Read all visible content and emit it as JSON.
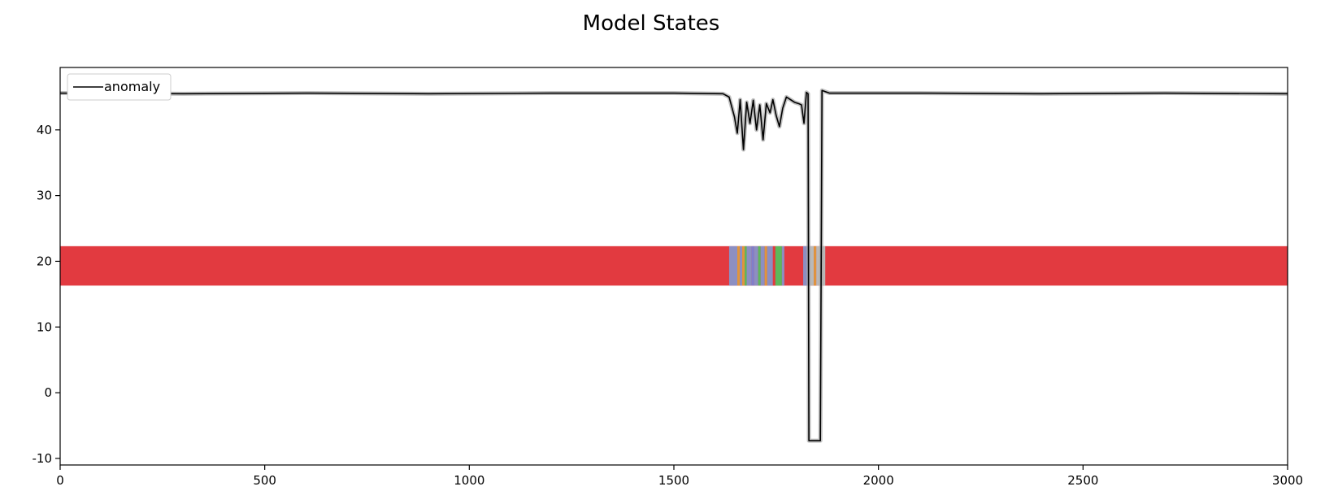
{
  "chart_data": {
    "type": "line",
    "title": "Model States",
    "xlabel": "",
    "ylabel": "",
    "xlim": [
      0,
      3000
    ],
    "ylim": [
      -11,
      49.5
    ],
    "x_ticks": [
      0,
      500,
      1000,
      1500,
      2000,
      2500,
      3000
    ],
    "y_ticks": [
      -10,
      0,
      10,
      20,
      30,
      40
    ],
    "grid": false,
    "legend": {
      "position": "top-left",
      "entries": [
        {
          "label": "anomaly",
          "color": "#000000"
        }
      ]
    },
    "series": [
      {
        "name": "anomaly",
        "color": "#000000",
        "shadow_color": "#a6a6a6",
        "points": [
          [
            0,
            45.6
          ],
          [
            300,
            45.5
          ],
          [
            600,
            45.6
          ],
          [
            900,
            45.5
          ],
          [
            1200,
            45.6
          ],
          [
            1500,
            45.6
          ],
          [
            1620,
            45.5
          ],
          [
            1635,
            45.0
          ],
          [
            1648,
            42.0
          ],
          [
            1655,
            39.5
          ],
          [
            1662,
            44.6
          ],
          [
            1670,
            37.0
          ],
          [
            1678,
            44.2
          ],
          [
            1686,
            41.0
          ],
          [
            1694,
            44.5
          ],
          [
            1702,
            40.0
          ],
          [
            1710,
            43.8
          ],
          [
            1718,
            38.5
          ],
          [
            1726,
            44.0
          ],
          [
            1735,
            42.6
          ],
          [
            1742,
            44.6
          ],
          [
            1750,
            42.2
          ],
          [
            1758,
            40.5
          ],
          [
            1766,
            43.3
          ],
          [
            1775,
            45.0
          ],
          [
            1785,
            44.6
          ],
          [
            1795,
            44.2
          ],
          [
            1805,
            44.0
          ],
          [
            1812,
            43.8
          ],
          [
            1818,
            41.0
          ],
          [
            1824,
            45.7
          ],
          [
            1828,
            45.5
          ],
          [
            1830,
            -7.3
          ],
          [
            1858,
            -7.3
          ],
          [
            1862,
            46.0
          ],
          [
            1880,
            45.6
          ],
          [
            2100,
            45.6
          ],
          [
            2400,
            45.5
          ],
          [
            2700,
            45.6
          ],
          [
            3000,
            45.5
          ]
        ]
      }
    ],
    "state_band": {
      "y_range": [
        16.3,
        22.3
      ],
      "x_range": [
        0,
        3000
      ],
      "default_color": "#e23a40",
      "segments": [
        {
          "x0": 1635,
          "x1": 1655,
          "color": "#8c8fc2"
        },
        {
          "x0": 1655,
          "x1": 1661,
          "color": "#e0953d"
        },
        {
          "x0": 1661,
          "x1": 1667,
          "color": "#8c8fc2"
        },
        {
          "x0": 1667,
          "x1": 1673,
          "color": "#e0953d"
        },
        {
          "x0": 1673,
          "x1": 1678,
          "color": "#5cb85c"
        },
        {
          "x0": 1678,
          "x1": 1690,
          "color": "#8c8fc2"
        },
        {
          "x0": 1690,
          "x1": 1696,
          "color": "#7f7fcc"
        },
        {
          "x0": 1696,
          "x1": 1706,
          "color": "#8c8fc2"
        },
        {
          "x0": 1706,
          "x1": 1712,
          "color": "#5cb85c"
        },
        {
          "x0": 1712,
          "x1": 1722,
          "color": "#8c8fc2"
        },
        {
          "x0": 1722,
          "x1": 1728,
          "color": "#e0953d"
        },
        {
          "x0": 1728,
          "x1": 1742,
          "color": "#8c8fc2"
        },
        {
          "x0": 1742,
          "x1": 1748,
          "color": "#e23a40"
        },
        {
          "x0": 1748,
          "x1": 1764,
          "color": "#5cb85c"
        },
        {
          "x0": 1764,
          "x1": 1770,
          "color": "#8c8fc2"
        },
        {
          "x0": 1816,
          "x1": 1828,
          "color": "#8c8fc2"
        },
        {
          "x0": 1828,
          "x1": 1842,
          "color": "#b9b9b9"
        },
        {
          "x0": 1842,
          "x1": 1848,
          "color": "#e0953d"
        },
        {
          "x0": 1848,
          "x1": 1870,
          "color": "#b9b9b9"
        }
      ]
    }
  }
}
